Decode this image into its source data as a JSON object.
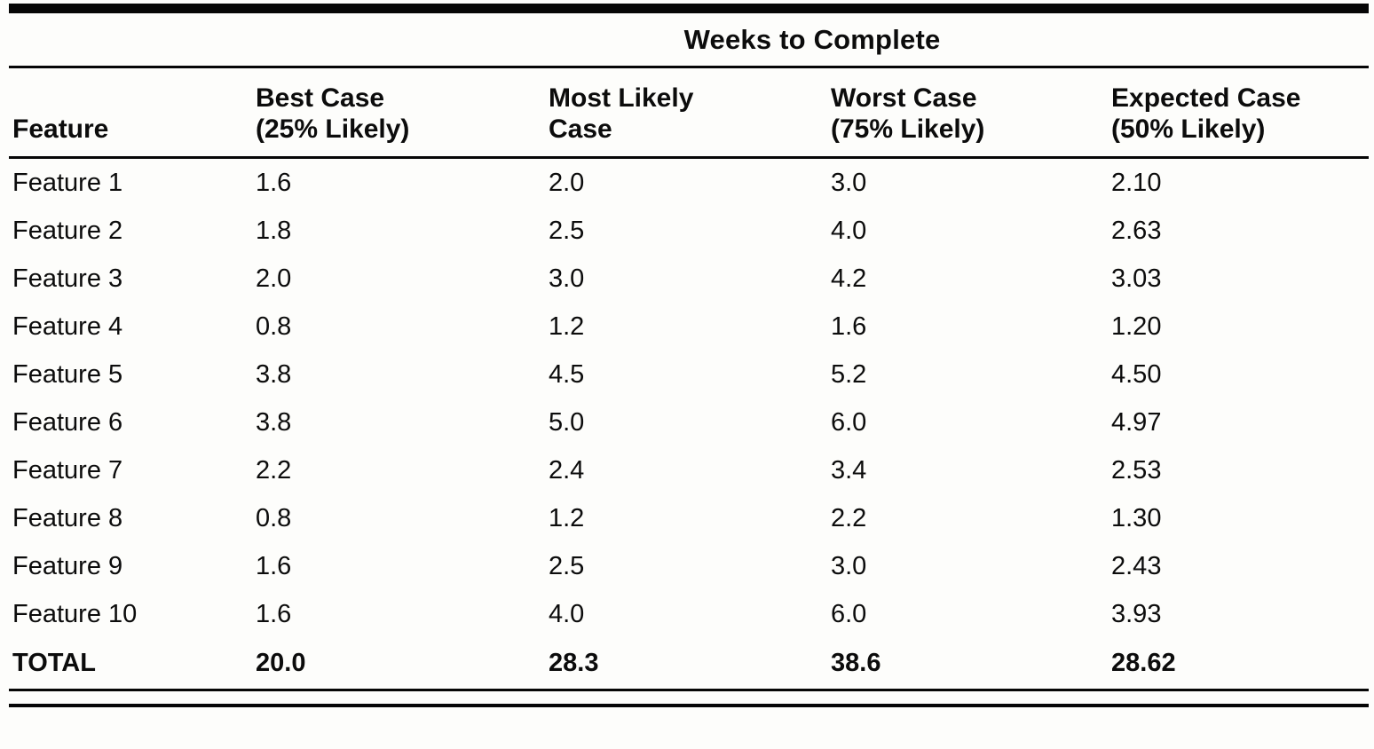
{
  "table": {
    "spanning_header": "Weeks to Complete",
    "columns": [
      {
        "label": "Feature",
        "sub": ""
      },
      {
        "label": "Best Case",
        "sub": "(25% Likely)"
      },
      {
        "label": "Most Likely",
        "sub": "Case"
      },
      {
        "label": "Worst Case",
        "sub": "(75% Likely)"
      },
      {
        "label": "Expected Case",
        "sub": "(50% Likely)"
      }
    ],
    "rows": [
      {
        "feature": "Feature 1",
        "values": [
          "1.6",
          "2.0",
          "3.0",
          "2.10"
        ]
      },
      {
        "feature": "Feature 2",
        "values": [
          "1.8",
          "2.5",
          "4.0",
          "2.63"
        ]
      },
      {
        "feature": "Feature 3",
        "values": [
          "2.0",
          "3.0",
          "4.2",
          "3.03"
        ]
      },
      {
        "feature": "Feature 4",
        "values": [
          "0.8",
          "1.2",
          "1.6",
          "1.20"
        ]
      },
      {
        "feature": "Feature 5",
        "values": [
          "3.8",
          "4.5",
          "5.2",
          "4.50"
        ]
      },
      {
        "feature": "Feature 6",
        "values": [
          "3.8",
          "5.0",
          "6.0",
          "4.97"
        ]
      },
      {
        "feature": "Feature 7",
        "values": [
          "2.2",
          "2.4",
          "3.4",
          "2.53"
        ]
      },
      {
        "feature": "Feature 8",
        "values": [
          "0.8",
          "1.2",
          "2.2",
          "1.30"
        ]
      },
      {
        "feature": "Feature 9",
        "values": [
          "1.6",
          "2.5",
          "3.0",
          "2.43"
        ]
      },
      {
        "feature": "Feature 10",
        "values": [
          "1.6",
          "4.0",
          "6.0",
          "3.93"
        ]
      }
    ],
    "total": {
      "feature": "TOTAL",
      "values": [
        "20.0",
        "28.3",
        "38.6",
        "28.62"
      ]
    }
  },
  "chart_data": {
    "type": "table",
    "title": "Weeks to Complete",
    "columns": [
      "Feature",
      "Best Case (25% Likely)",
      "Most Likely Case",
      "Worst Case (75% Likely)",
      "Expected Case (50% Likely)"
    ],
    "rows": [
      [
        "Feature 1",
        1.6,
        2.0,
        3.0,
        2.1
      ],
      [
        "Feature 2",
        1.8,
        2.5,
        4.0,
        2.63
      ],
      [
        "Feature 3",
        2.0,
        3.0,
        4.2,
        3.03
      ],
      [
        "Feature 4",
        0.8,
        1.2,
        1.6,
        1.2
      ],
      [
        "Feature 5",
        3.8,
        4.5,
        5.2,
        4.5
      ],
      [
        "Feature 6",
        3.8,
        5.0,
        6.0,
        4.97
      ],
      [
        "Feature 7",
        2.2,
        2.4,
        3.4,
        2.53
      ],
      [
        "Feature 8",
        0.8,
        1.2,
        2.2,
        1.3
      ],
      [
        "Feature 9",
        1.6,
        2.5,
        3.0,
        2.43
      ],
      [
        "Feature 10",
        1.6,
        4.0,
        6.0,
        3.93
      ],
      [
        "TOTAL",
        20.0,
        28.3,
        38.6,
        28.62
      ]
    ],
    "text_color": "#0c0c0c",
    "background_color": "#fdfdfb"
  }
}
